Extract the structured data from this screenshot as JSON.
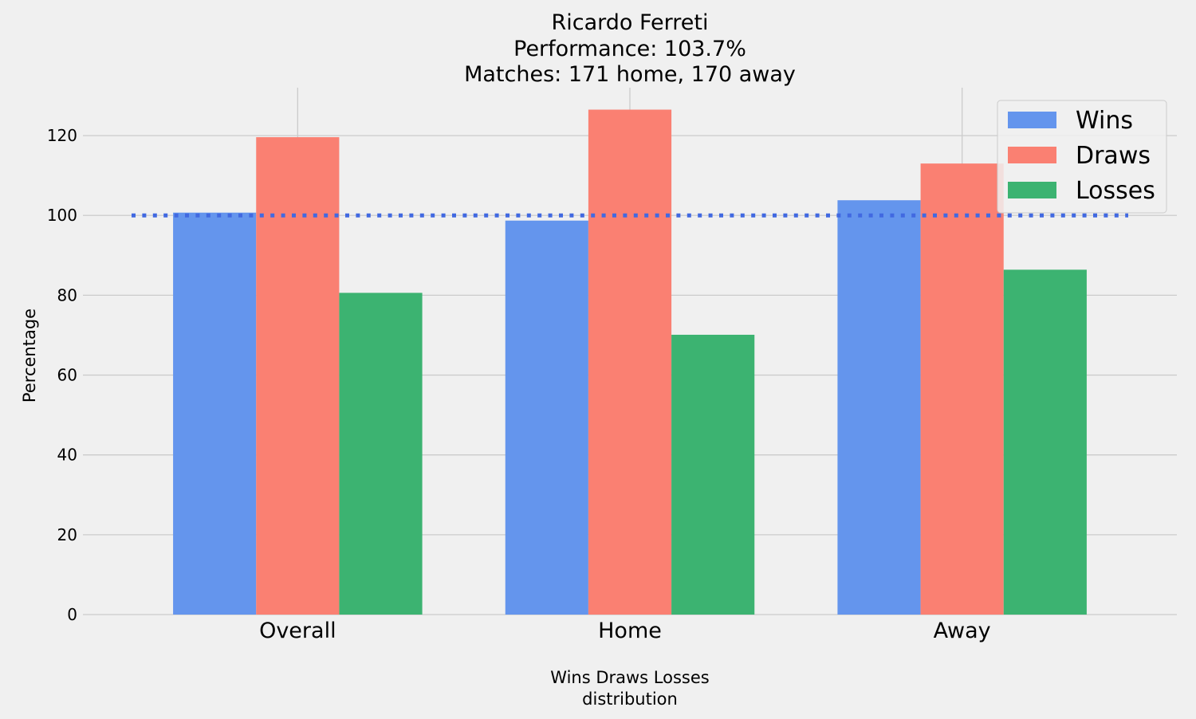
{
  "chart_data": {
    "type": "bar",
    "title": [
      "Ricardo Ferreti",
      "Performance: 103.7%",
      "Matches: 171 home, 170 away"
    ],
    "xlabel": [
      "Wins Draws Losses",
      "distribution"
    ],
    "ylabel": "Percentage",
    "categories": [
      "Overall",
      "Home",
      "Away"
    ],
    "series": [
      {
        "name": "Wins",
        "color": "#6495ed",
        "values": [
          100.7,
          98.7,
          103.8
        ]
      },
      {
        "name": "Draws",
        "color": "#fa8072",
        "values": [
          119.6,
          126.5,
          113.0
        ]
      },
      {
        "name": "Losses",
        "color": "#3cb371",
        "values": [
          80.6,
          70.1,
          86.4
        ]
      }
    ],
    "ylim": [
      0,
      132
    ],
    "yticks": [
      0,
      20,
      40,
      60,
      80,
      100,
      120
    ],
    "reference_line": {
      "value": 100,
      "style": "dotted",
      "color": "#4169e1"
    },
    "grid": true,
    "legend_position": "top-right"
  }
}
